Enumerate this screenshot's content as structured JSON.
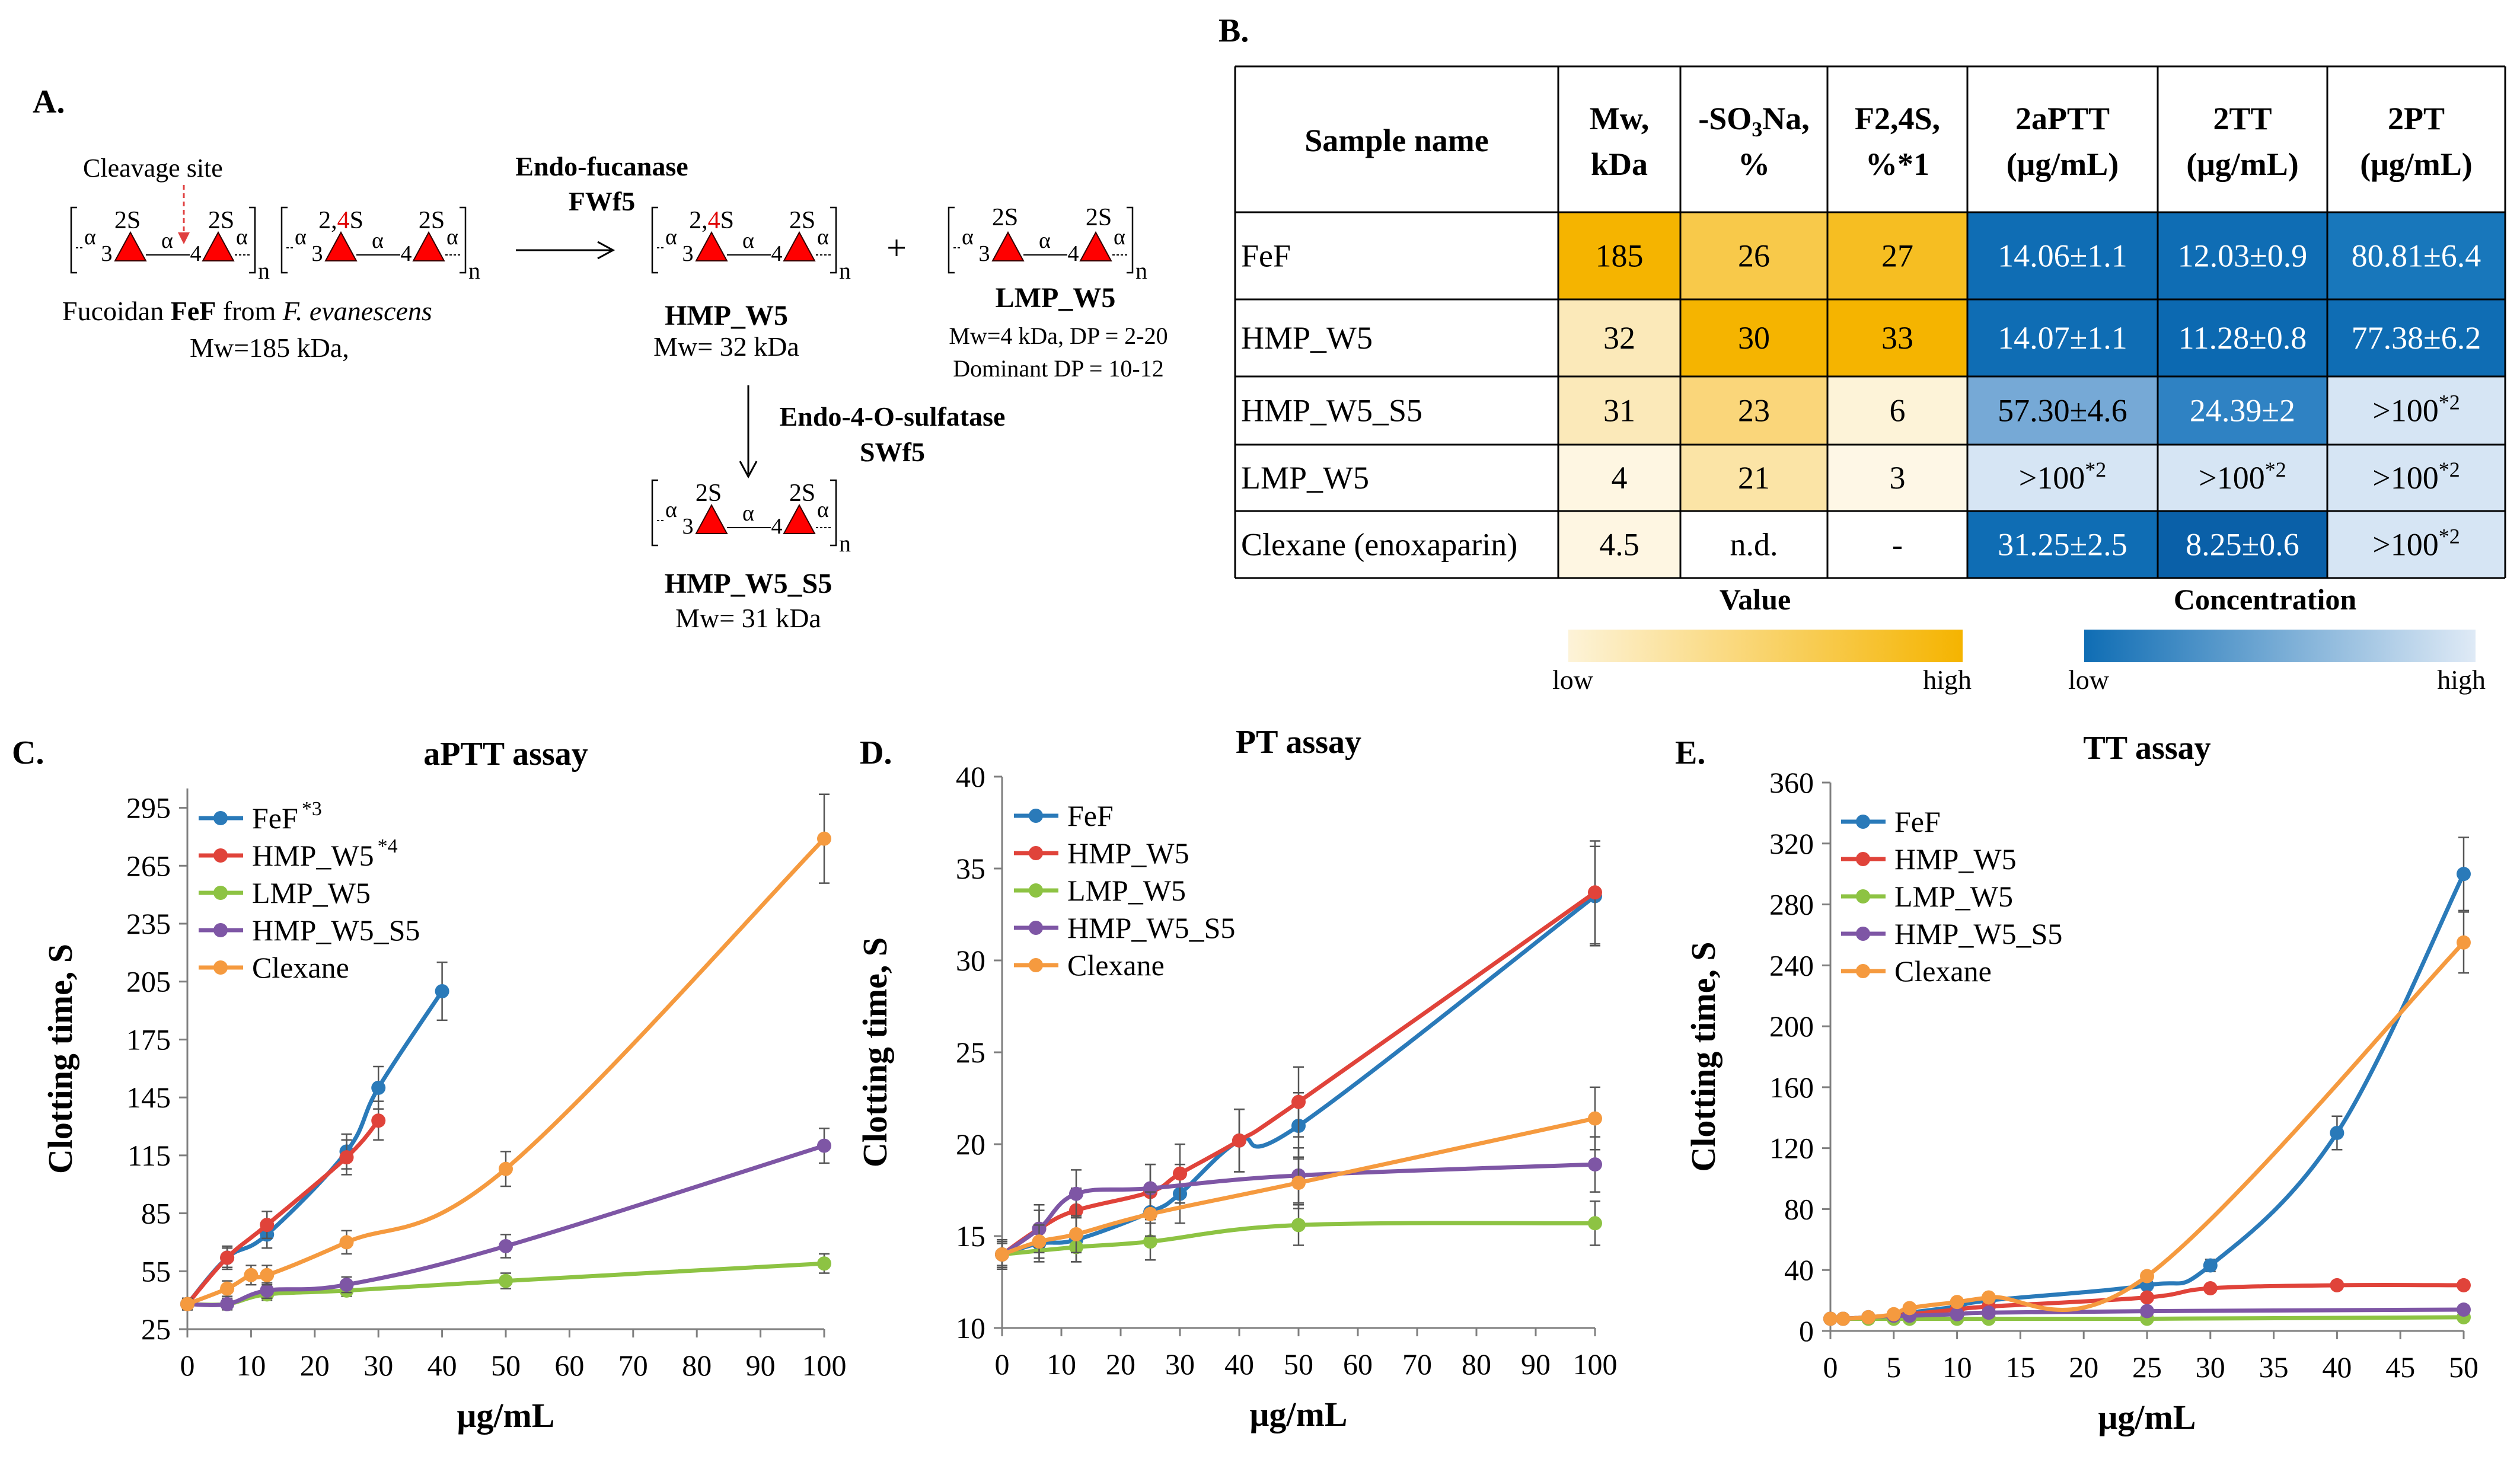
{
  "panels": {
    "A": "A.",
    "B": "B.",
    "C": "C.",
    "D": "D.",
    "E": "E."
  },
  "scheme": {
    "cleavage_site": "Cleavage site",
    "feF_line_prefix": "Fucoidan ",
    "feF_bold": "FeF",
    "feF_from": " from ",
    "feF_species": "F. evanescens",
    "feF_mw": "Mw=185 kDa,",
    "enzyme1_name": "Endo-fucanase",
    "enzyme1_code": "FWf5",
    "hmp_w5": "HMP_W5",
    "hmp_w5_mw": "Mw= 32 kDa",
    "lmp_w5": "LMP_W5",
    "lmp_w5_mw": "Mw=4 kDa, DP = 2-20",
    "lmp_w5_dp": "Dominant DP = 10-12",
    "enzyme2_name": "Endo-4-O-sulfatase",
    "enzyme2_code": "SWf5",
    "hmp_w5_s5": "HMP_W5_S5",
    "hmp_w5_s5_mw": "Mw= 31 kDa",
    "plus": "+",
    "alpha": "α",
    "sub_n": "n",
    "s2": "2S",
    "s24_a": "2,",
    "s24_b": "4",
    "s24_c": "S",
    "pos3": "3",
    "pos4": "4"
  },
  "table": {
    "headers": [
      {
        "line1": "Sample name",
        "line2": ""
      },
      {
        "line1": "Mw,",
        "line2": "kDa"
      },
      {
        "line1": "-SO",
        "sub": "3",
        "rest": "Na,",
        "line2": "%"
      },
      {
        "line1": "F2,4S,",
        "line2": "%*1"
      },
      {
        "line1": "2aPTT",
        "line2": "(μg/mL)"
      },
      {
        "line1": "2TT",
        "line2": "(μg/mL)"
      },
      {
        "line1": "2PT",
        "line2": "(μg/mL)"
      }
    ],
    "rows": [
      {
        "name": "FeF",
        "mw": "185",
        "so3na": "26",
        "f24s": "27",
        "aptt": "14.06±1.1",
        "tt": "12.03±0.9",
        "pt": "80.81±6.4",
        "colors": [
          "#f5b400",
          "#f8c94a",
          "#f6be22",
          "#0f6db4",
          "#0f6db4",
          "#1877bb"
        ]
      },
      {
        "name": "HMP_W5",
        "mw": "32",
        "so3na": "30",
        "f24s": "33",
        "aptt": "14.07±1.1",
        "tt": "11.28±0.8",
        "pt": "77.38±6.2",
        "colors": [
          "#fbe9b9",
          "#f5b400",
          "#f5b400",
          "#0f6db4",
          "#0c69b1",
          "#0f6db4"
        ]
      },
      {
        "name": "HMP_W5_S5",
        "mw": "31",
        "so3na": "23",
        "f24s": "6",
        "aptt": "57.30±4.6",
        "tt": "24.39±2",
        "pt": ">100*2",
        "colors": [
          "#fbe9b9",
          "#fad67a",
          "#fdf3d8",
          "#76a9d6",
          "#2f82c3",
          "#d6e5f4"
        ]
      },
      {
        "name": "LMP_W5",
        "mw": "4",
        "so3na": "21",
        "f24s": "3",
        "aptt": ">100*2",
        "tt": ">100*2",
        "pt": ">100*2",
        "colors": [
          "#fef6e2",
          "#fbe4a6",
          "#fef7e6",
          "#d6e5f4",
          "#d6e5f4",
          "#d6e5f4"
        ]
      },
      {
        "name": "Clexane (enoxaparin)",
        "mw": "4.5",
        "so3na": "n.d.",
        "f24s": "-",
        "aptt": "31.25±2.5",
        "tt": "8.25±0.6",
        "pt": ">100*2",
        "colors": [
          "#fef6e2",
          "#ffffff",
          "#ffffff",
          "#0f6db4",
          "#0a60a8",
          "#d6e5f4"
        ]
      }
    ],
    "legend_value": {
      "title": "Value",
      "low": "low",
      "high": "high",
      "color_low": "#fdf3d8",
      "color_high": "#f5b400"
    },
    "legend_conc": {
      "title": "Concentration",
      "low": "low",
      "high": "high",
      "color_low": "#0f6db4",
      "color_high": "#dfeaf6"
    }
  },
  "chart_data": [
    {
      "panel": "C",
      "type": "line",
      "title": "aPTT assay",
      "xlabel": "μg/mL",
      "ylabel": "Clotting time, S",
      "xlim": [
        0,
        100
      ],
      "xticks": [
        0,
        10,
        20,
        30,
        40,
        50,
        60,
        70,
        80,
        90,
        100
      ],
      "ylim": [
        25,
        305
      ],
      "yticks": [
        25,
        55,
        85,
        115,
        145,
        175,
        205,
        235,
        265,
        295
      ],
      "series": [
        {
          "name": "FeF",
          "sup": "*3",
          "color": "#2a7ab9",
          "x": [
            0,
            6.25,
            12.5,
            25,
            30,
            40
          ],
          "y": [
            38,
            62,
            74,
            117,
            150,
            200
          ],
          "err": [
            3,
            6,
            7,
            9,
            11,
            15
          ]
        },
        {
          "name": "HMP_W5",
          "sup": "*4",
          "color": "#e0433a",
          "x": [
            0,
            6.25,
            12.5,
            25,
            30
          ],
          "y": [
            38,
            62,
            79,
            114,
            133
          ],
          "err": [
            3,
            5,
            7,
            9,
            10
          ]
        },
        {
          "name": "LMP_W5",
          "sup": "",
          "color": "#8dc343",
          "x": [
            0,
            6.25,
            12.5,
            25,
            50,
            100
          ],
          "y": [
            38,
            38,
            43,
            45,
            50,
            59
          ],
          "err": [
            2,
            2,
            3,
            3,
            4,
            5
          ]
        },
        {
          "name": "HMP_W5_S5",
          "sup": "",
          "color": "#7e56a5",
          "x": [
            0,
            6.25,
            12.5,
            25,
            50,
            100
          ],
          "y": [
            38,
            38,
            45,
            48,
            68,
            120
          ],
          "err": [
            2,
            3,
            4,
            4,
            6,
            9
          ]
        },
        {
          "name": "Clexane",
          "sup": "",
          "color": "#f59a3f",
          "x": [
            0,
            6.25,
            10,
            12.5,
            25,
            50,
            100
          ],
          "y": [
            38,
            46,
            53,
            53,
            70,
            108,
            279
          ],
          "err": [
            3,
            4,
            5,
            5,
            6,
            9,
            23
          ]
        }
      ]
    },
    {
      "panel": "D",
      "type": "line",
      "title": "PT assay",
      "xlabel": "μg/mL",
      "ylabel": "Clotting time, S",
      "xlim": [
        0,
        100
      ],
      "xticks": [
        0,
        10,
        20,
        30,
        40,
        50,
        60,
        70,
        80,
        90,
        100
      ],
      "ylim": [
        10,
        40
      ],
      "yticks": [
        10,
        15,
        20,
        25,
        30,
        35,
        40
      ],
      "series": [
        {
          "name": "FeF",
          "sup": "",
          "color": "#2a7ab9",
          "x": [
            0,
            6.25,
            12.5,
            25,
            30,
            40,
            50,
            100
          ],
          "y": [
            14,
            14.6,
            14.8,
            16.3,
            17.3,
            20.2,
            21,
            33.5
          ],
          "err": [
            0.8,
            1,
            1.2,
            1.5,
            1.6,
            1.7,
            1.8,
            2.7
          ]
        },
        {
          "name": "HMP_W5",
          "sup": "",
          "color": "#e0433a",
          "x": [
            0,
            6.25,
            12.5,
            25,
            30,
            40,
            50,
            100
          ],
          "y": [
            14,
            15.4,
            16.4,
            17.4,
            18.4,
            20.2,
            22.3,
            33.7
          ],
          "err": [
            0.8,
            1,
            1.2,
            1.5,
            1.6,
            1.7,
            1.9,
            2.8
          ]
        },
        {
          "name": "LMP_W5",
          "sup": "",
          "color": "#8dc343",
          "x": [
            0,
            12.5,
            25,
            50,
            100
          ],
          "y": [
            14,
            14.4,
            14.7,
            15.6,
            15.7
          ],
          "err": [
            0.6,
            0.8,
            1,
            1.1,
            1.2
          ]
        },
        {
          "name": "HMP_W5_S5",
          "sup": "",
          "color": "#7e56a5",
          "x": [
            0,
            6.25,
            12.5,
            25,
            50,
            100
          ],
          "y": [
            14,
            15.4,
            17.3,
            17.6,
            18.3,
            18.9
          ],
          "err": [
            0.8,
            1.3,
            1.3,
            1.3,
            1.5,
            1.5
          ]
        },
        {
          "name": "Clexane",
          "sup": "",
          "color": "#f59a3f",
          "x": [
            0,
            6.25,
            12.5,
            25,
            50,
            100
          ],
          "y": [
            14,
            14.7,
            15.1,
            16.2,
            17.9,
            21.4
          ],
          "err": [
            0.7,
            0.9,
            1,
            1.2,
            1.4,
            1.7
          ]
        }
      ]
    },
    {
      "panel": "E",
      "type": "line",
      "title": "TT assay",
      "xlabel": "μg/mL",
      "ylabel": "Clotting time, S",
      "xlim": [
        0,
        50
      ],
      "xticks": [
        0,
        5,
        10,
        15,
        20,
        25,
        30,
        35,
        40,
        45,
        50
      ],
      "ylim": [
        0,
        360
      ],
      "yticks": [
        0,
        40,
        80,
        120,
        160,
        200,
        240,
        280,
        320,
        360
      ],
      "series": [
        {
          "name": "FeF",
          "sup": "",
          "color": "#2a7ab9",
          "x": [
            0,
            1,
            3,
            5,
            6.25,
            10,
            12.5,
            25,
            30,
            40,
            50
          ],
          "y": [
            8,
            8,
            9,
            10,
            12,
            16,
            20,
            30,
            43,
            130,
            300
          ],
          "err": [
            1,
            1,
            1,
            1,
            1,
            2,
            2,
            3,
            4,
            11,
            24
          ]
        },
        {
          "name": "HMP_W5",
          "sup": "",
          "color": "#e0433a",
          "x": [
            0,
            1,
            3,
            5,
            6.25,
            10,
            12.5,
            25,
            30,
            40,
            50
          ],
          "y": [
            8,
            8,
            9,
            10,
            11,
            14,
            16,
            22,
            28,
            30,
            30
          ],
          "err": [
            1,
            1,
            1,
            1,
            1,
            1,
            2,
            2,
            2,
            2,
            2
          ]
        },
        {
          "name": "LMP_W5",
          "sup": "",
          "color": "#8dc343",
          "x": [
            0,
            1,
            3,
            5,
            6.25,
            10,
            12.5,
            25,
            50
          ],
          "y": [
            8,
            8,
            8,
            8,
            8,
            8,
            8,
            8,
            9
          ],
          "err": [
            1,
            1,
            1,
            1,
            1,
            1,
            1,
            1,
            1
          ]
        },
        {
          "name": "HMP_W5_S5",
          "sup": "",
          "color": "#7e56a5",
          "x": [
            0,
            1,
            3,
            5,
            6.25,
            10,
            12.5,
            25,
            50
          ],
          "y": [
            8,
            8,
            9,
            10,
            10,
            11,
            12,
            13,
            14
          ],
          "err": [
            1,
            1,
            1,
            1,
            1,
            1,
            1,
            1,
            1
          ]
        },
        {
          "name": "Clexane",
          "sup": "",
          "color": "#f59a3f",
          "x": [
            0,
            1,
            3,
            5,
            6.25,
            10,
            12.5,
            25,
            50
          ],
          "y": [
            8,
            8,
            9,
            11,
            15,
            19,
            22,
            36,
            255
          ],
          "err": [
            1,
            1,
            1,
            1,
            2,
            2,
            2,
            3,
            20
          ]
        }
      ]
    }
  ]
}
